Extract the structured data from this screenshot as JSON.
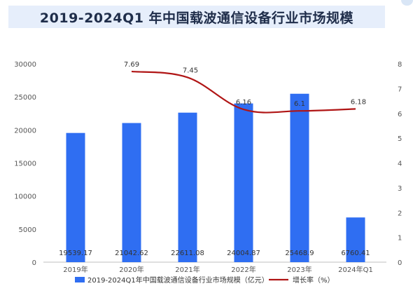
{
  "title": "2019-2024Q1 年中国载波通信设备行业市场规模",
  "colors": {
    "bar": "#2f6ef2",
    "line": "#b01515",
    "title_bg": "#e6eefb"
  },
  "chart_data": {
    "type": "bar",
    "title": "2019-2024Q1 年中国载波通信设备行业市场规模",
    "categories": [
      "2019年",
      "2020年",
      "2021年",
      "2022年",
      "2023年",
      "2024年Q1"
    ],
    "series": [
      {
        "name": "2019-2024Q1年中国载波通信设备行业市场规模（亿元）",
        "type": "bar",
        "axis": "left",
        "values": [
          19539.17,
          21042.62,
          22611.08,
          24004.87,
          25468.9,
          6760.41
        ],
        "labels": [
          "19539.17",
          "21042.62",
          "22611.08",
          "24004.87",
          "25468.9",
          "6760.41"
        ]
      },
      {
        "name": "增长率（%）",
        "type": "line",
        "axis": "right",
        "values": [
          null,
          7.69,
          7.45,
          6.16,
          6.1,
          6.18
        ],
        "labels": [
          "",
          "7.69",
          "7.45",
          "6.16",
          "6.1",
          "6.18"
        ]
      }
    ],
    "y_left": {
      "min": 0,
      "max": 30000,
      "ticks": [
        "0",
        "5000",
        "10000",
        "15000",
        "20000",
        "25000",
        "30000"
      ]
    },
    "y_right": {
      "min": 0,
      "max": 8,
      "ticks": [
        "0",
        "1",
        "2",
        "3",
        "4",
        "5",
        "6",
        "7",
        "8"
      ]
    },
    "grid": false,
    "legend": "bottom"
  }
}
